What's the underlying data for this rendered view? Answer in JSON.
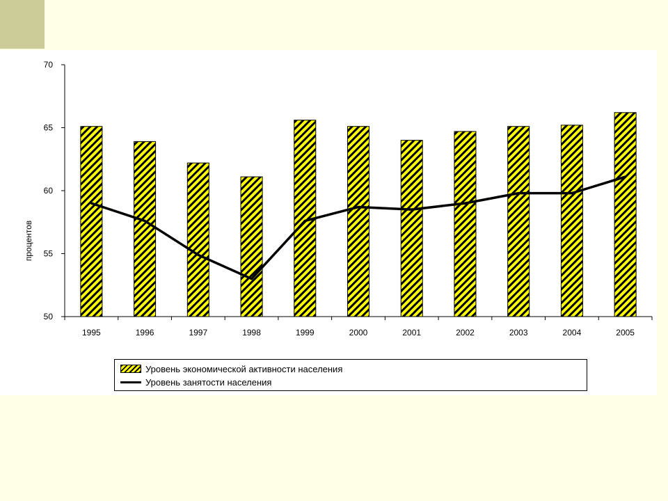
{
  "chart_data": {
    "type": "bar",
    "categories": [
      "1995",
      "1996",
      "1997",
      "1998",
      "1999",
      "2000",
      "2001",
      "2002",
      "2003",
      "2004",
      "2005"
    ],
    "series": [
      {
        "name": "Уровень экономической активности населения",
        "type": "bar",
        "values": [
          65.1,
          63.9,
          62.2,
          61.1,
          65.6,
          65.1,
          64.0,
          64.7,
          65.1,
          65.2,
          66.2
        ],
        "color": "#FFFF00",
        "pattern": "black-diagonal-hatch"
      },
      {
        "name": "Уровень занятости населения",
        "type": "line",
        "values": [
          59.0,
          57.6,
          54.9,
          53.0,
          57.6,
          58.7,
          58.5,
          59.0,
          59.8,
          59.8,
          61.1
        ],
        "color": "#000000"
      }
    ],
    "ylabel": "процентов",
    "ylim": [
      50,
      70
    ],
    "yticks": [
      50,
      55,
      60,
      65,
      70
    ],
    "grid": false,
    "legend_position": "bottom"
  },
  "colors": {
    "background": "#FFFFE5",
    "corner_square": "#CCCC99",
    "panel": "#FFFFFF"
  }
}
